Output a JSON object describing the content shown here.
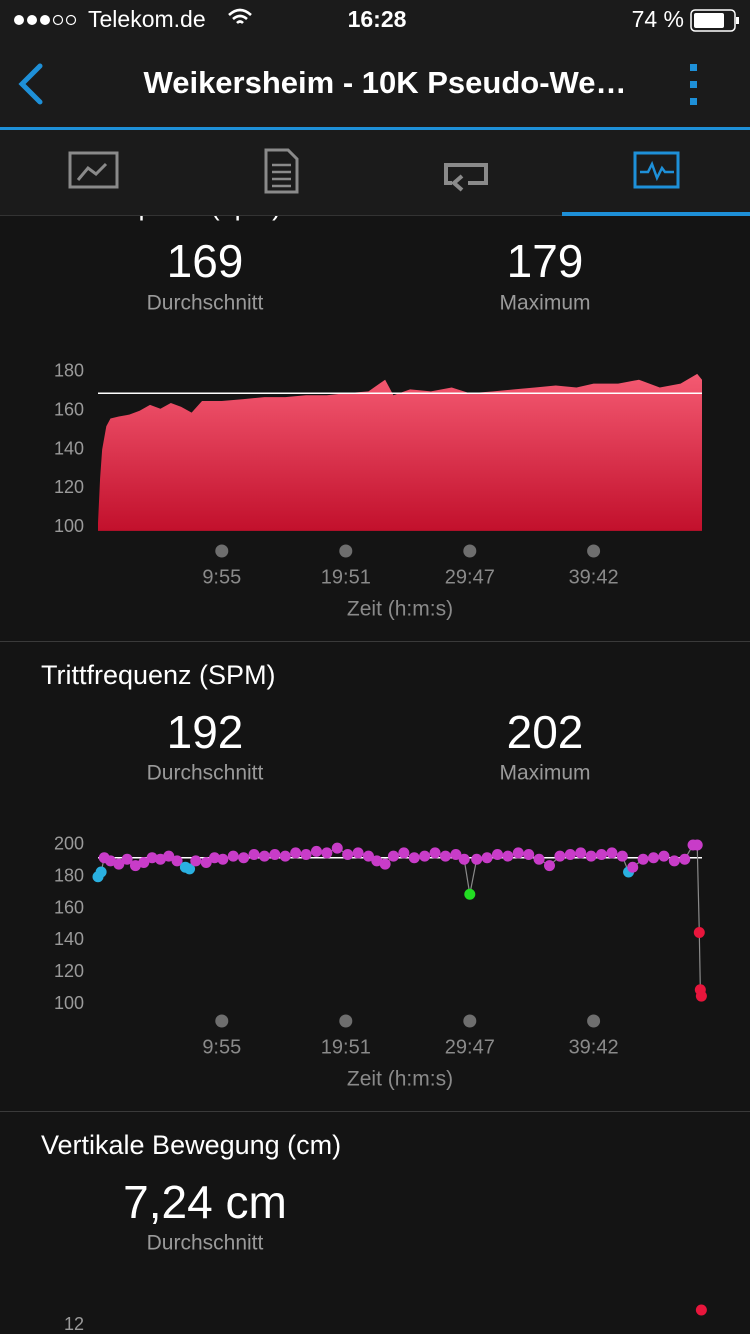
{
  "status_bar": {
    "carrier": "Telekom.de",
    "time": "16:28",
    "battery": "74 %"
  },
  "nav": {
    "title": "Weikersheim - 10K Pseudo-We…"
  },
  "chart_data": [
    {
      "type": "area",
      "title": "Herzfrequenz (bpm)",
      "stats": [
        {
          "value": 169,
          "label": "Durchschnitt"
        },
        {
          "value": 179,
          "label": "Maximum"
        }
      ],
      "average_line": true,
      "color": "#e8304e",
      "x": [
        0,
        10,
        20,
        40,
        60,
        100,
        150,
        200,
        250,
        300,
        350,
        400,
        450,
        500,
        595,
        700,
        800,
        900,
        1000,
        1100,
        1191,
        1300,
        1380,
        1420,
        1500,
        1600,
        1700,
        1787,
        1900,
        2000,
        2100,
        2200,
        2300,
        2382,
        2500,
        2600,
        2700,
        2800,
        2880,
        2903
      ],
      "values": [
        102,
        125,
        140,
        152,
        156,
        157,
        158,
        160,
        163,
        161,
        164,
        162,
        159,
        165,
        165,
        166,
        167,
        167,
        168,
        168,
        169,
        170,
        176,
        168,
        171,
        170,
        172,
        169,
        170,
        171,
        172,
        173,
        172,
        174,
        174,
        176,
        172,
        174,
        179,
        176
      ],
      "xlim": [
        0,
        2903
      ],
      "xticks": [
        {
          "value": 595,
          "label": "9:55"
        },
        {
          "value": 1191,
          "label": "19:51"
        },
        {
          "value": 1787,
          "label": "29:47"
        },
        {
          "value": 2382,
          "label": "39:42"
        }
      ],
      "ylim": [
        98,
        182
      ],
      "yticks": [
        100,
        120,
        140,
        160,
        180
      ],
      "x_label": "Zeit (h:m:s)"
    },
    {
      "type": "scatter",
      "title": "Trittfrequenz (SPM)",
      "stats": [
        {
          "value": 192,
          "label": "Durchschnitt"
        },
        {
          "value": 202,
          "label": "Maximum"
        }
      ],
      "average_line": true,
      "series": [
        {
          "x": [
            0,
            15,
            30,
            60,
            100,
            140,
            180,
            220,
            260,
            300,
            340,
            380,
            420,
            440,
            470,
            520,
            560,
            600,
            650,
            700,
            750,
            800,
            850,
            900,
            950,
            1000,
            1050,
            1100,
            1150,
            1200,
            1250,
            1300,
            1340,
            1380,
            1420,
            1470,
            1520,
            1570,
            1620,
            1670,
            1720,
            1760,
            1787,
            1820,
            1870,
            1920,
            1970,
            2020,
            2070,
            2120,
            2170,
            2220,
            2270,
            2320,
            2370,
            2420,
            2470,
            2520,
            2550,
            2570,
            2620,
            2670,
            2720,
            2770,
            2820,
            2860,
            2880,
            2890,
            2895,
            2900
          ],
          "values": [
            180,
            183,
            192,
            190,
            188,
            191,
            187,
            189,
            192,
            191,
            193,
            190,
            186,
            185,
            190,
            189,
            192,
            191,
            193,
            192,
            194,
            193,
            194,
            193,
            195,
            194,
            196,
            195,
            198,
            194,
            195,
            193,
            190,
            188,
            193,
            195,
            192,
            193,
            195,
            193,
            194,
            191,
            169,
            191,
            192,
            194,
            193,
            195,
            194,
            191,
            187,
            193,
            194,
            195,
            193,
            194,
            195,
            193,
            183,
            186,
            191,
            192,
            193,
            190,
            191,
            200,
            200,
            145,
            109,
            105
          ],
          "colors": [
            "#2ab0e0",
            "#2ab0e0",
            "#c83cc8",
            "#c83cc8",
            "#c83cc8",
            "#c83cc8",
            "#c83cc8",
            "#c83cc8",
            "#c83cc8",
            "#c83cc8",
            "#c83cc8",
            "#c83cc8",
            "#2ab0e0",
            "#2ab0e0",
            "#c83cc8",
            "#c83cc8",
            "#c83cc8",
            "#c83cc8",
            "#c83cc8",
            "#c83cc8",
            "#c83cc8",
            "#c83cc8",
            "#c83cc8",
            "#c83cc8",
            "#c83cc8",
            "#c83cc8",
            "#c83cc8",
            "#c83cc8",
            "#c83cc8",
            "#c83cc8",
            "#c83cc8",
            "#c83cc8",
            "#c83cc8",
            "#c83cc8",
            "#c83cc8",
            "#c83cc8",
            "#c83cc8",
            "#c83cc8",
            "#c83cc8",
            "#c83cc8",
            "#c83cc8",
            "#c83cc8",
            "#22dd22",
            "#c83cc8",
            "#c83cc8",
            "#c83cc8",
            "#c83cc8",
            "#c83cc8",
            "#c83cc8",
            "#c83cc8",
            "#c83cc8",
            "#c83cc8",
            "#c83cc8",
            "#c83cc8",
            "#c83cc8",
            "#c83cc8",
            "#c83cc8",
            "#c83cc8",
            "#2ab0e0",
            "#c83cc8",
            "#c83cc8",
            "#c83cc8",
            "#c83cc8",
            "#c83cc8",
            "#c83cc8",
            "#c83cc8",
            "#c83cc8",
            "#e8163c",
            "#e8163c",
            "#e8163c"
          ]
        }
      ],
      "xlim": [
        0,
        2903
      ],
      "xticks": [
        {
          "value": 595,
          "label": "9:55"
        },
        {
          "value": 1191,
          "label": "19:51"
        },
        {
          "value": 1787,
          "label": "29:47"
        },
        {
          "value": 2382,
          "label": "39:42"
        }
      ],
      "ylim": [
        98,
        202
      ],
      "yticks": [
        100,
        120,
        140,
        160,
        180,
        200
      ],
      "x_label": "Zeit (h:m:s)"
    },
    {
      "type": "scatter",
      "title": "Vertikale Bewegung (cm)",
      "stats": [
        {
          "value": 7.24,
          "value_label": "7,24 cm",
          "label": "Durchschnitt"
        }
      ],
      "series": [
        {
          "x": [
            2900
          ],
          "values": [
            12.6
          ],
          "colors": [
            "#e8163c"
          ]
        }
      ],
      "xlim": [
        0,
        2903
      ],
      "ylim": [
        9,
        13
      ],
      "yticks": [
        12
      ]
    }
  ]
}
